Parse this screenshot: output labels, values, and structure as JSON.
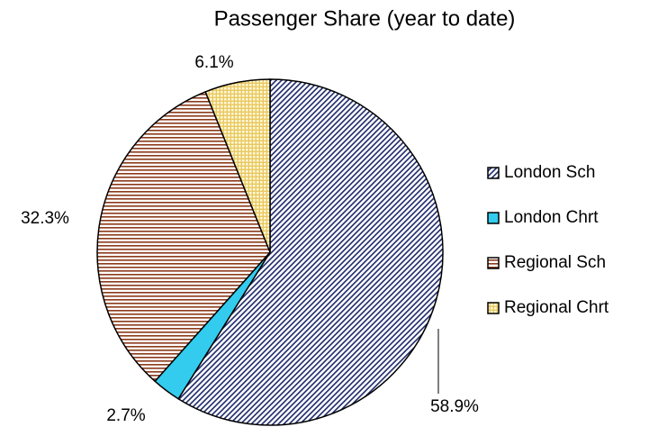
{
  "chart_data": {
    "type": "pie",
    "title": "Passenger Share (year to date)",
    "series": [
      {
        "name": "London Sch",
        "color": "#1f2a6b",
        "hatch": "diagonal"
      },
      {
        "name": "London Chrt",
        "color": "#33ccee",
        "hatch": "solid"
      },
      {
        "name": "Regional Sch",
        "color": "#8b3a1a",
        "hatch": "horizontal"
      },
      {
        "name": "Regional Chrt",
        "color": "#e8c860",
        "hatch": "grid"
      }
    ],
    "values": [
      58.9,
      2.7,
      32.3,
      6.1
    ],
    "value_labels": [
      "58.9%",
      "2.7%",
      "32.3%",
      "6.1%"
    ],
    "legend": "right"
  }
}
